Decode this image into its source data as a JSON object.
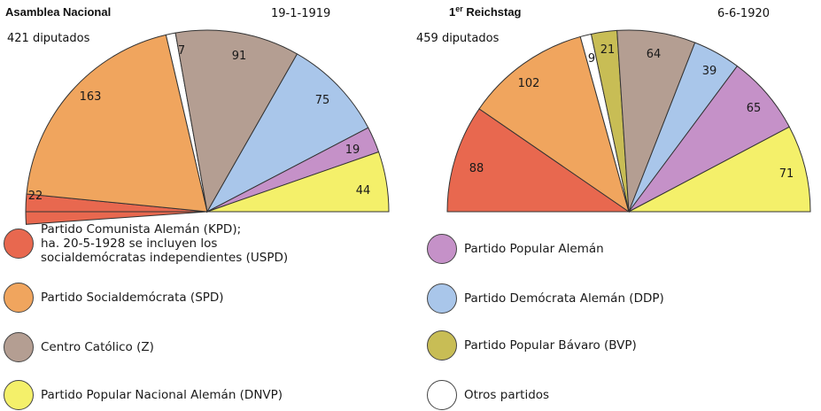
{
  "colors": {
    "kpd": "#e8684f",
    "spd": "#f0a55e",
    "z": "#b49e92",
    "ddp": "#a9c6ea",
    "dvp": "#c591c8",
    "dnvp": "#f4f06a",
    "bvp": "#c8bd55",
    "otros": "#ffffff"
  },
  "chart_data": [
    {
      "type": "pie",
      "title": "Asamblea Nacional",
      "date": "19-1-1919",
      "subtitle": "421 diputados",
      "slices": [
        {
          "party": "kpd",
          "value": 22
        },
        {
          "party": "spd",
          "value": 163
        },
        {
          "party": "otros",
          "value": 7
        },
        {
          "party": "z",
          "value": 91
        },
        {
          "party": "ddp",
          "value": 75
        },
        {
          "party": "dvp",
          "value": 19
        },
        {
          "party": "dnvp",
          "value": 44
        }
      ]
    },
    {
      "type": "pie",
      "title": "1er Reichstag",
      "title_main": "1",
      "title_sup": "er",
      "title_rest": " Reichstag",
      "date": "6-6-1920",
      "subtitle": "459 diputados",
      "slices": [
        {
          "party": "kpd",
          "value": 88
        },
        {
          "party": "spd",
          "value": 102
        },
        {
          "party": "otros",
          "value": 9
        },
        {
          "party": "bvp",
          "value": 21
        },
        {
          "party": "z",
          "value": 64
        },
        {
          "party": "ddp",
          "value": 39
        },
        {
          "party": "dvp",
          "value": 65
        },
        {
          "party": "dnvp",
          "value": 71
        }
      ]
    }
  ],
  "legend": {
    "kpd": "Partido Comunista Alemán (KPD);\nha. 20-5-1928 se incluyen los\nsocialdemócratas independientes (USPD)",
    "spd": "Partido Socialdemócrata (SPD)",
    "z": "Centro Católico (Z)",
    "dnvp": "Partido Popular Nacional  Alemán (DNVP)",
    "dvp": "Partido Popular Alemán",
    "ddp": "Partido Demócrata Alemán (DDP)",
    "bvp": "Partido Popular Bávaro (BVP)",
    "otros": "Otros partidos"
  }
}
